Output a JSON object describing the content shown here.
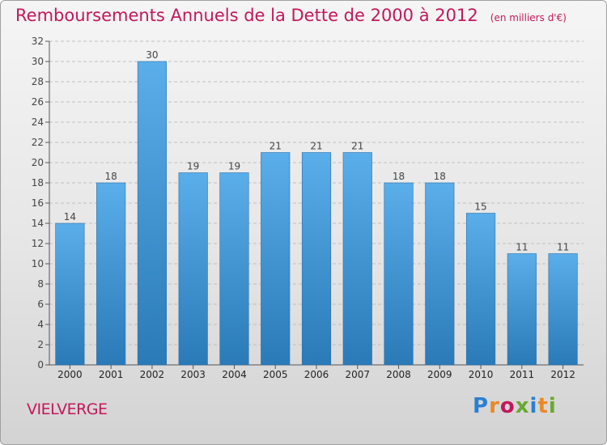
{
  "header": {
    "title": "Remboursements Annuels de la Dette de 2000 à 2012",
    "subtitle": "(en milliers d'€)"
  },
  "footer": {
    "city": "VIELVERGE",
    "logo_text": "Proxiti",
    "logo_colors": [
      "#2a7fd4",
      "#e8892a",
      "#c2185b",
      "#6aa832",
      "#2a7fd4",
      "#e8892a",
      "#6aa832"
    ]
  },
  "colors": {
    "accent": "#c2185b",
    "bar_top": "#5aaeea",
    "bar_bottom": "#2a7ab8",
    "grid": "#c0c0c0"
  },
  "chart_data": {
    "type": "bar",
    "title": "Remboursements Annuels de la Dette de 2000 à 2012",
    "subtitle": "(en milliers d'€)",
    "xlabel": "",
    "ylabel": "",
    "categories": [
      "2000",
      "2001",
      "2002",
      "2003",
      "2004",
      "2005",
      "2006",
      "2007",
      "2008",
      "2009",
      "2010",
      "2011",
      "2012"
    ],
    "values": [
      14,
      18,
      30,
      19,
      19,
      21,
      21,
      21,
      18,
      18,
      15,
      11,
      11
    ],
    "data_labels": [
      "14",
      "18",
      "30",
      "19",
      "19",
      "21",
      "21",
      "21",
      "18",
      "18",
      "15",
      "11",
      "11"
    ],
    "ylim": [
      0,
      32
    ],
    "yticks": [
      0,
      2,
      4,
      6,
      8,
      10,
      12,
      14,
      16,
      18,
      20,
      22,
      24,
      26,
      28,
      30,
      32
    ],
    "grid": true,
    "legend": "none"
  }
}
